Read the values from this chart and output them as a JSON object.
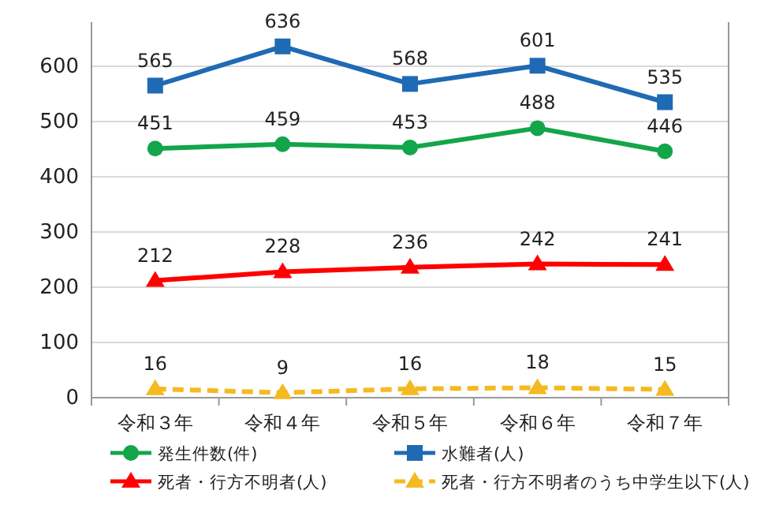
{
  "chart_data": {
    "type": "line",
    "categories": [
      "令和３年",
      "令和４年",
      "令和５年",
      "令和６年",
      "令和７年"
    ],
    "series": [
      {
        "name": "発生件数(件)",
        "color": "#13a54a",
        "values": [
          451,
          459,
          453,
          488,
          446
        ],
        "marker": "circle",
        "line_style": "solid"
      },
      {
        "name": "水難者(人)",
        "color": "#1f6ab4",
        "values": [
          565,
          636,
          568,
          601,
          535
        ],
        "marker": "square",
        "line_style": "solid"
      },
      {
        "name": "死者・行方不明者(人)",
        "color": "#ff0000",
        "values": [
          212,
          228,
          236,
          242,
          241
        ],
        "marker": "triangle",
        "line_style": "solid"
      },
      {
        "name": "死者・行方不明者のうち中学生以下(人)",
        "color": "#f5b921",
        "values": [
          16,
          9,
          16,
          18,
          15
        ],
        "marker": "triangle",
        "line_style": "dashed"
      }
    ],
    "ylim": [
      0,
      680
    ],
    "yticks": [
      0,
      100,
      200,
      300,
      400,
      500,
      600
    ],
    "grid": "y",
    "data_labels": true,
    "legend": "bottom"
  }
}
